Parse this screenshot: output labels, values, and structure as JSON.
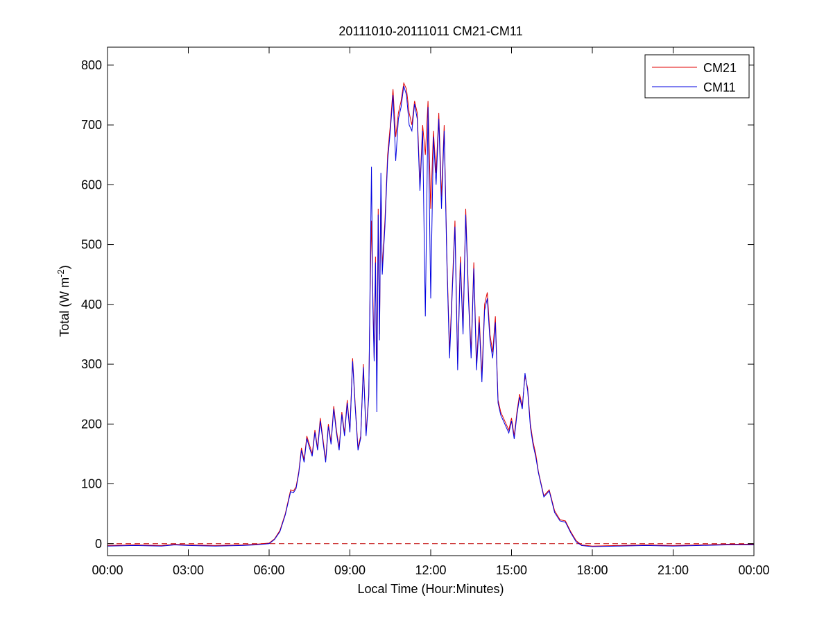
{
  "chart_data": {
    "type": "line",
    "title": "20111010-20111011 CM21-CM11",
    "xlabel": "Local Time (Hour:Minutes)",
    "ylabel": {
      "base": "Total (W m",
      "sup": "-2",
      "end": ")"
    },
    "xlim": [
      0,
      24
    ],
    "ylim": [
      -20,
      830
    ],
    "x_ticks": [
      0,
      3,
      6,
      9,
      12,
      15,
      18,
      21,
      24
    ],
    "x_tick_labels": [
      "00:00",
      "03:00",
      "06:00",
      "09:00",
      "12:00",
      "15:00",
      "18:00",
      "21:00",
      "00:00"
    ],
    "y_ticks": [
      0,
      100,
      200,
      300,
      400,
      500,
      600,
      700,
      800
    ],
    "y_tick_labels": [
      "0",
      "100",
      "200",
      "300",
      "400",
      "500",
      "600",
      "700",
      "800"
    ],
    "grid": false,
    "legend_position": "top-right",
    "reference_line": {
      "y": 0,
      "style": "dashed",
      "color": "#c00000"
    },
    "series": [
      {
        "name": "CM21",
        "color": "#e00000",
        "x": [
          0.0,
          1.0,
          2.0,
          2.5,
          3.0,
          4.0,
          5.0,
          5.5,
          6.0,
          6.2,
          6.4,
          6.6,
          6.8,
          6.9,
          7.0,
          7.1,
          7.2,
          7.3,
          7.4,
          7.5,
          7.6,
          7.7,
          7.8,
          7.9,
          8.0,
          8.1,
          8.2,
          8.3,
          8.4,
          8.5,
          8.6,
          8.7,
          8.8,
          8.9,
          9.0,
          9.1,
          9.2,
          9.3,
          9.4,
          9.5,
          9.6,
          9.7,
          9.75,
          9.8,
          9.85,
          9.9,
          9.95,
          10.0,
          10.05,
          10.1,
          10.15,
          10.2,
          10.3,
          10.4,
          10.5,
          10.6,
          10.7,
          10.8,
          10.9,
          11.0,
          11.1,
          11.2,
          11.3,
          11.4,
          11.5,
          11.6,
          11.7,
          11.8,
          11.9,
          12.0,
          12.1,
          12.2,
          12.3,
          12.4,
          12.5,
          12.6,
          12.7,
          12.8,
          12.9,
          13.0,
          13.1,
          13.2,
          13.3,
          13.4,
          13.5,
          13.6,
          13.7,
          13.8,
          13.9,
          14.0,
          14.1,
          14.2,
          14.3,
          14.4,
          14.5,
          14.6,
          14.7,
          14.8,
          14.9,
          15.0,
          15.1,
          15.2,
          15.3,
          15.4,
          15.5,
          15.6,
          15.7,
          15.8,
          15.9,
          16.0,
          16.2,
          16.4,
          16.6,
          16.8,
          17.0,
          17.2,
          17.4,
          17.6,
          17.8,
          18.0,
          19.0,
          20.0,
          21.0,
          22.0,
          23.0,
          24.0
        ],
        "y": [
          -3,
          -2,
          -3,
          -1,
          -2,
          -3,
          -2,
          -1,
          1,
          8,
          22,
          50,
          90,
          88,
          95,
          120,
          160,
          140,
          180,
          165,
          150,
          190,
          160,
          210,
          175,
          140,
          200,
          170,
          230,
          190,
          160,
          220,
          185,
          240,
          190,
          310,
          230,
          160,
          180,
          300,
          185,
          250,
          420,
          540,
          420,
          310,
          480,
          260,
          560,
          350,
          600,
          460,
          540,
          650,
          700,
          760,
          680,
          720,
          740,
          770,
          760,
          720,
          700,
          740,
          720,
          600,
          700,
          650,
          740,
          560,
          690,
          620,
          720,
          580,
          700,
          480,
          320,
          430,
          540,
          300,
          480,
          360,
          560,
          420,
          320,
          470,
          300,
          380,
          280,
          400,
          420,
          350,
          320,
          380,
          240,
          220,
          210,
          200,
          190,
          210,
          180,
          220,
          250,
          230,
          280,
          260,
          200,
          170,
          150,
          120,
          80,
          90,
          55,
          40,
          38,
          20,
          5,
          -2,
          -3,
          -4,
          -3,
          -2,
          -3,
          -2,
          -1,
          -1
        ]
      },
      {
        "name": "CM11",
        "color": "#0000e0",
        "x": [
          0.0,
          1.0,
          2.0,
          2.5,
          3.0,
          4.0,
          5.0,
          5.5,
          6.0,
          6.2,
          6.4,
          6.6,
          6.8,
          6.9,
          7.0,
          7.1,
          7.2,
          7.3,
          7.4,
          7.5,
          7.6,
          7.7,
          7.8,
          7.9,
          8.0,
          8.1,
          8.2,
          8.3,
          8.4,
          8.5,
          8.6,
          8.7,
          8.8,
          8.9,
          9.0,
          9.1,
          9.2,
          9.3,
          9.4,
          9.5,
          9.6,
          9.7,
          9.75,
          9.8,
          9.85,
          9.9,
          9.95,
          10.0,
          10.05,
          10.1,
          10.15,
          10.2,
          10.3,
          10.4,
          10.5,
          10.6,
          10.7,
          10.8,
          10.9,
          11.0,
          11.1,
          11.2,
          11.3,
          11.4,
          11.5,
          11.6,
          11.7,
          11.8,
          11.9,
          12.0,
          12.1,
          12.2,
          12.3,
          12.4,
          12.5,
          12.6,
          12.7,
          12.8,
          12.9,
          13.0,
          13.1,
          13.2,
          13.3,
          13.4,
          13.5,
          13.6,
          13.7,
          13.8,
          13.9,
          14.0,
          14.1,
          14.2,
          14.3,
          14.4,
          14.5,
          14.6,
          14.7,
          14.8,
          14.9,
          15.0,
          15.1,
          15.2,
          15.3,
          15.4,
          15.5,
          15.6,
          15.7,
          15.8,
          15.9,
          16.0,
          16.2,
          16.4,
          16.6,
          16.8,
          17.0,
          17.2,
          17.4,
          17.6,
          17.8,
          18.0,
          19.0,
          20.0,
          21.0,
          22.0,
          23.0,
          24.0
        ],
        "y": [
          -4,
          -3,
          -4,
          -2,
          -3,
          -4,
          -3,
          -2,
          0,
          7,
          20,
          48,
          87,
          85,
          92,
          117,
          156,
          136,
          176,
          160,
          146,
          186,
          156,
          205,
          170,
          136,
          196,
          166,
          225,
          185,
          156,
          216,
          180,
          235,
          186,
          305,
          225,
          156,
          176,
          295,
          180,
          245,
          440,
          630,
          400,
          305,
          470,
          220,
          550,
          340,
          620,
          450,
          530,
          640,
          690,
          750,
          640,
          710,
          730,
          765,
          750,
          700,
          690,
          735,
          710,
          590,
          690,
          380,
          730,
          410,
          680,
          600,
          710,
          560,
          690,
          470,
          310,
          420,
          530,
          290,
          470,
          350,
          550,
          410,
          310,
          460,
          290,
          370,
          270,
          390,
          410,
          340,
          310,
          370,
          235,
          215,
          205,
          195,
          185,
          205,
          175,
          215,
          245,
          225,
          285,
          255,
          195,
          165,
          145,
          118,
          78,
          88,
          52,
          38,
          36,
          18,
          3,
          -3,
          -4,
          -5,
          -4,
          -3,
          -4,
          -3,
          -2,
          -2
        ]
      }
    ]
  }
}
